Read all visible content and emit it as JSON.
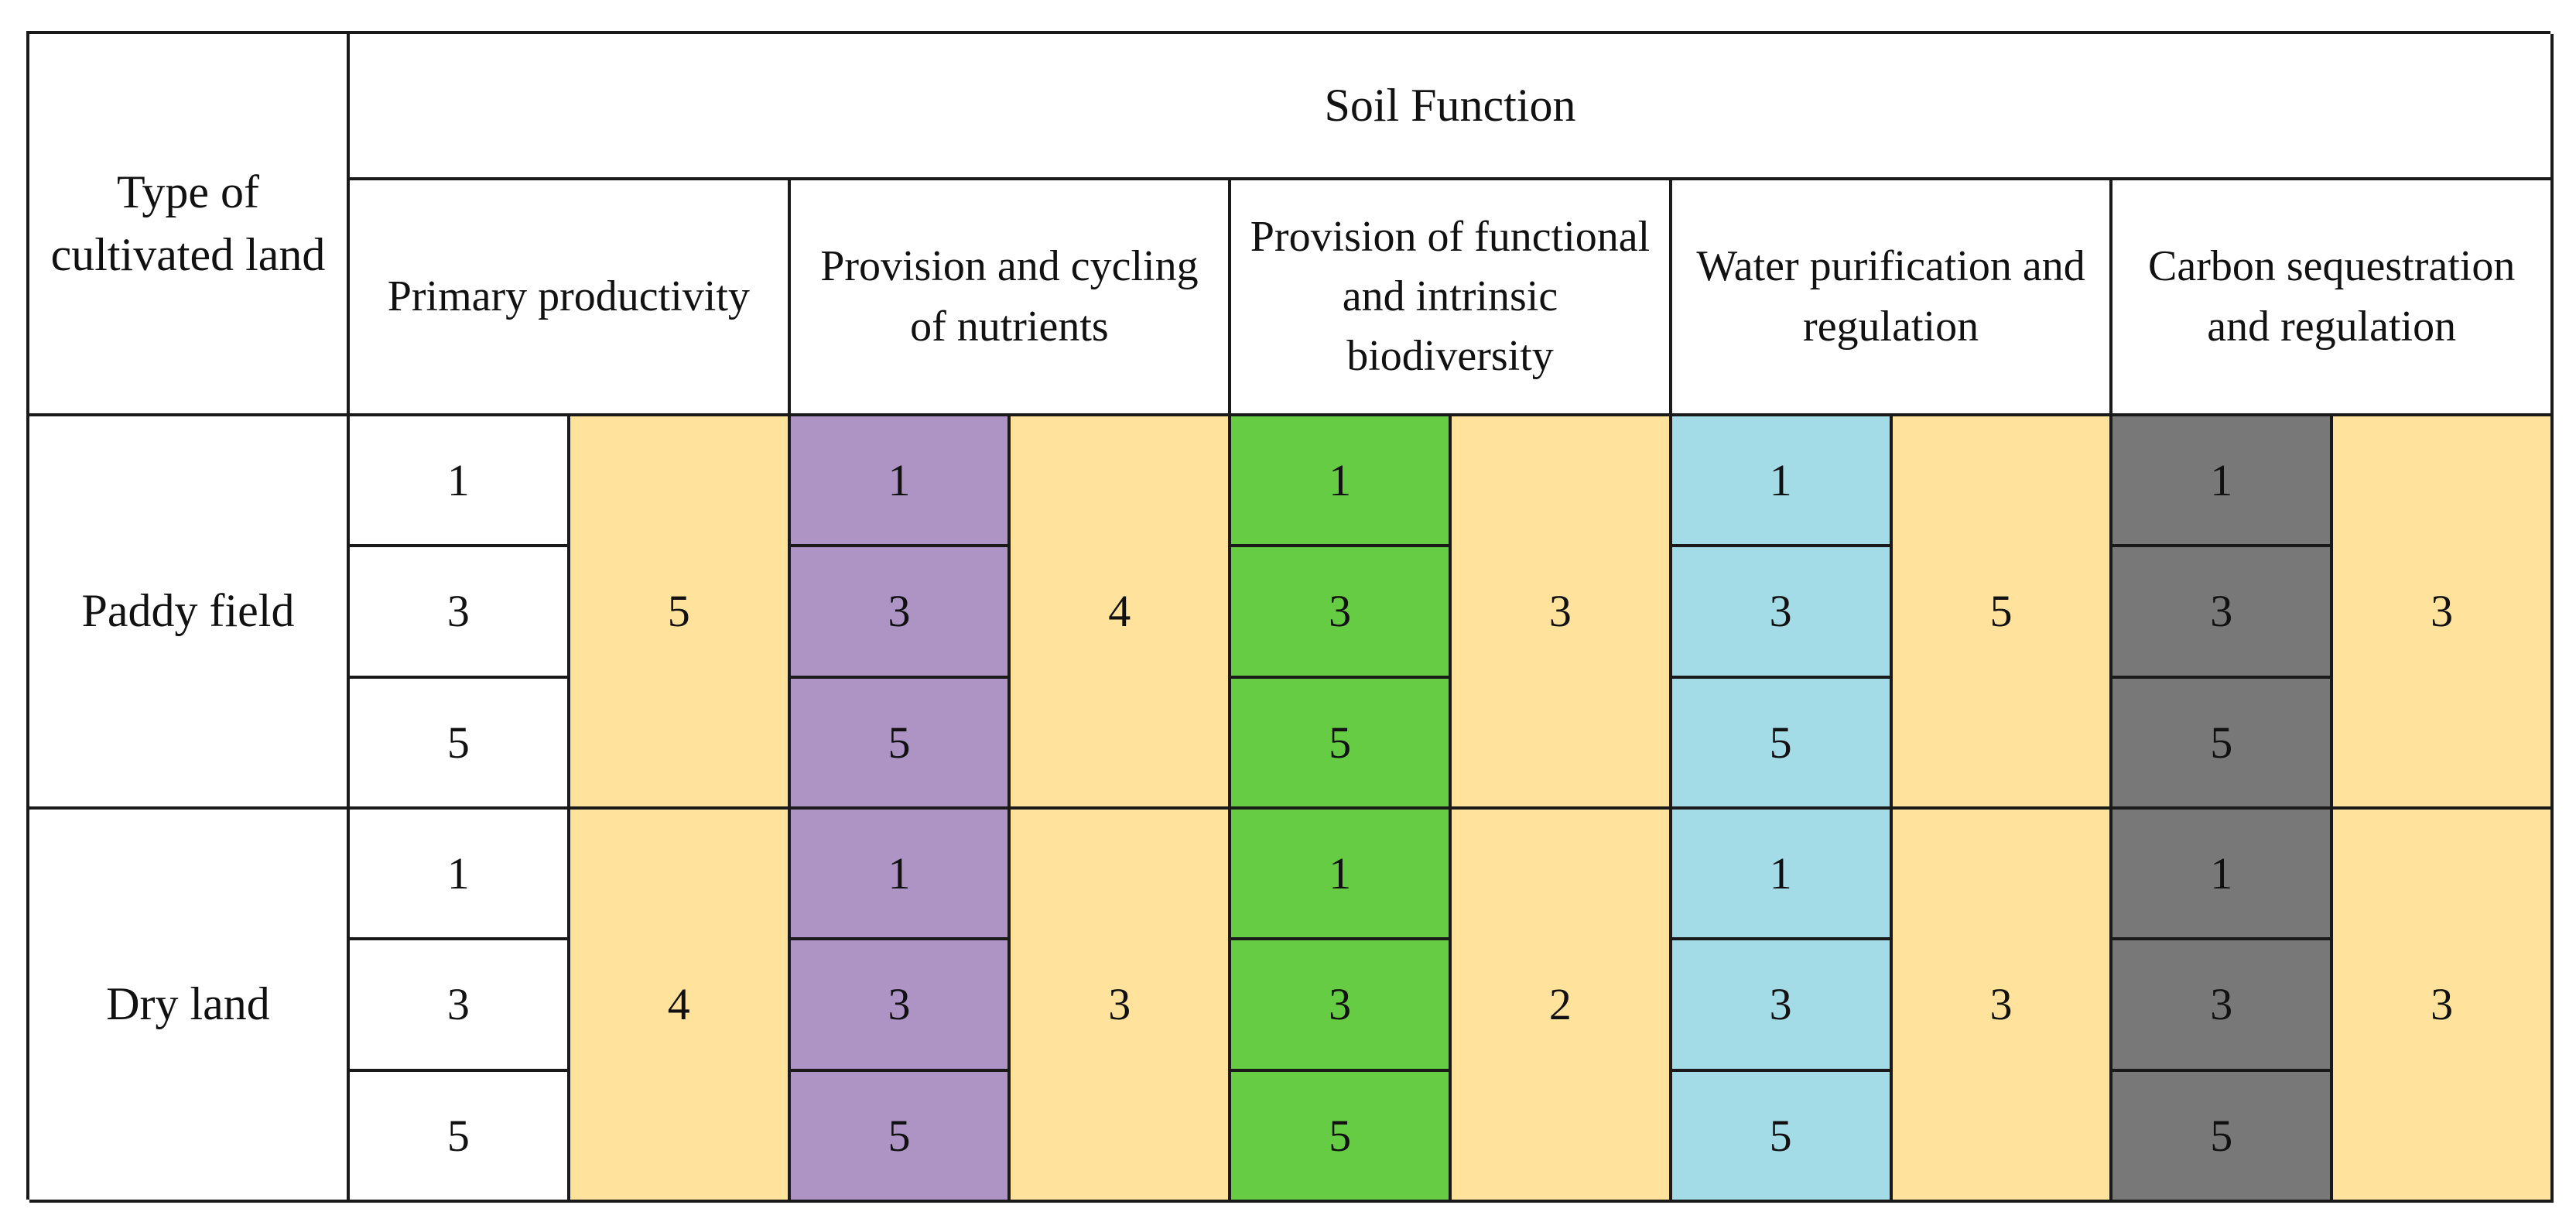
{
  "header": {
    "land_type": "Type of cultivated land",
    "group": "Soil Function",
    "functions": [
      "Primary productivity",
      "Provision and cycling of nutrients",
      "Provision of functional and intrinsic biodiversity",
      "Water purification and regulation",
      "Carbon sequestration and regulation"
    ]
  },
  "colors": {
    "primary_productivity": "#ffffff",
    "nutrients": "#ad94c4",
    "biodiversity": "#66cc44",
    "water": "#a3dbe6",
    "carbon": "#787878",
    "aggregate": "#ffe29b"
  },
  "rows": [
    {
      "land": "Paddy field",
      "functions": [
        {
          "levels": [
            "1",
            "3",
            "5"
          ],
          "score": "5"
        },
        {
          "levels": [
            "1",
            "3",
            "5"
          ],
          "score": "4"
        },
        {
          "levels": [
            "1",
            "3",
            "5"
          ],
          "score": "3"
        },
        {
          "levels": [
            "1",
            "3",
            "5"
          ],
          "score": "5"
        },
        {
          "levels": [
            "1",
            "3",
            "5"
          ],
          "score": "3"
        }
      ]
    },
    {
      "land": "Dry land",
      "functions": [
        {
          "levels": [
            "1",
            "3",
            "5"
          ],
          "score": "4"
        },
        {
          "levels": [
            "1",
            "3",
            "5"
          ],
          "score": "3"
        },
        {
          "levels": [
            "1",
            "3",
            "5"
          ],
          "score": "2"
        },
        {
          "levels": [
            "1",
            "3",
            "5"
          ],
          "score": "3"
        },
        {
          "levels": [
            "1",
            "3",
            "5"
          ],
          "score": "3"
        }
      ]
    }
  ]
}
